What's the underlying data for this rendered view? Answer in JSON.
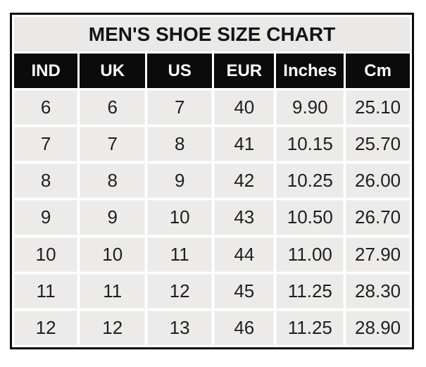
{
  "title": "MEN'S SHOE SIZE CHART",
  "colors": {
    "page_bg": "#ffffff",
    "outer_border": "#0a0a0a",
    "title_bg": "#eae9e7",
    "title_text": "#141414",
    "header_bg": "#0b0b0b",
    "header_text": "#fcfbf8",
    "cell_bg": "#edebe9",
    "cell_text": "#1f1f1f",
    "gap": "#ffffff"
  },
  "chart_data": {
    "type": "table",
    "title": "MEN'S SHOE SIZE CHART",
    "columns": [
      "IND",
      "UK",
      "US",
      "EUR",
      "Inches",
      "Cm"
    ],
    "rows": [
      [
        "6",
        "6",
        "7",
        "40",
        "9.90",
        "25.10"
      ],
      [
        "7",
        "7",
        "8",
        "41",
        "10.15",
        "25.70"
      ],
      [
        "8",
        "8",
        "9",
        "42",
        "10.25",
        "26.00"
      ],
      [
        "9",
        "9",
        "10",
        "43",
        "10.50",
        "26.70"
      ],
      [
        "10",
        "10",
        "11",
        "44",
        "11.00",
        "27.90"
      ],
      [
        "11",
        "11",
        "12",
        "45",
        "11.25",
        "28.30"
      ],
      [
        "12",
        "12",
        "13",
        "46",
        "11.25",
        "28.90"
      ]
    ]
  }
}
